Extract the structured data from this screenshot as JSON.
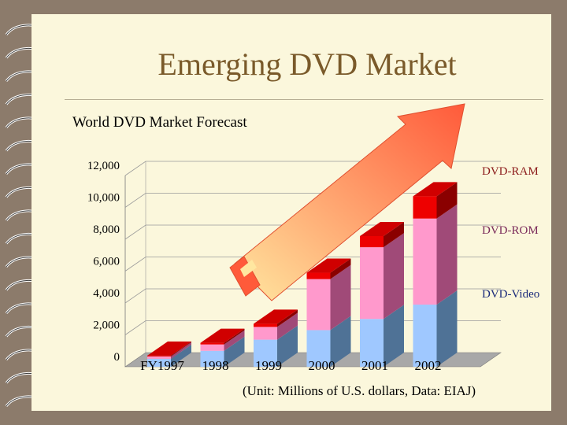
{
  "slide": {
    "title": "Emerging DVD Market",
    "subtitle": "World DVD Market Forecast",
    "note": "(Unit: Millions of U.S. dollars, Data: EIAJ)"
  },
  "chart_data": {
    "type": "bar",
    "stacked": true,
    "style": "3d",
    "categories": [
      "FY1997",
      "1998",
      "1999",
      "2000",
      "2001",
      "2002"
    ],
    "series": [
      {
        "name": "DVD-Video",
        "values": [
          500,
          1000,
          1700,
          2300,
          3000,
          3900
        ],
        "color": "#9fc8ff",
        "side": "#4f7296"
      },
      {
        "name": "DVD-ROM",
        "values": [
          150,
          400,
          800,
          3200,
          4500,
          5400
        ],
        "color": "#ff99cc",
        "side": "#a04a78"
      },
      {
        "name": "DVD-RAM",
        "values": [
          50,
          100,
          200,
          400,
          700,
          1400
        ],
        "color": "#ee0000",
        "side": "#8a0000"
      }
    ],
    "legend_labels": [
      {
        "text": "DVD-RAM",
        "color": "#8b1a1a"
      },
      {
        "text": "DVD-ROM",
        "color": "#7a2a5a"
      },
      {
        "text": "DVD-Video",
        "color": "#1a2a7a"
      }
    ],
    "legend_placement": "right",
    "ylim": [
      0,
      12000
    ],
    "yticks": [
      "0",
      "2,000",
      "4,000",
      "6,000",
      "8,000",
      "10,000",
      "12,000"
    ],
    "grid": true,
    "arrow_color": "#ff6a3a"
  }
}
